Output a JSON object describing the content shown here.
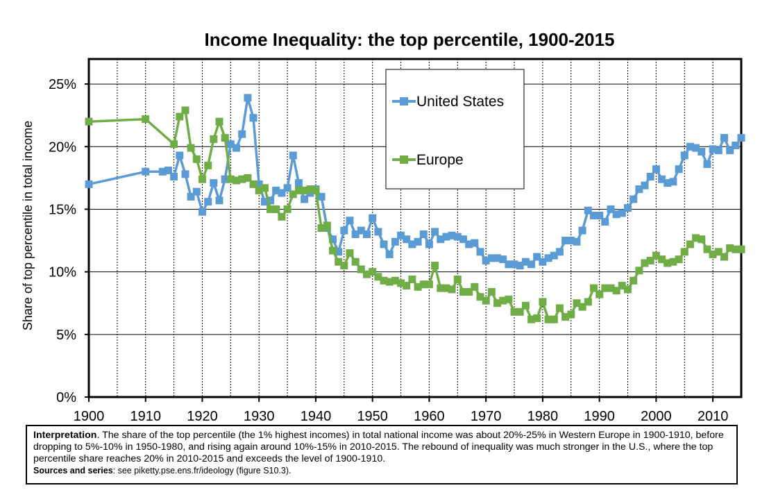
{
  "chart_data": {
    "type": "line",
    "title": "Income Inequality: the top percentile, 1900-2015",
    "xlabel": "",
    "ylabel": "Share of top percentile in total income",
    "xlim": [
      1900,
      2015
    ],
    "ylim": [
      0,
      0.27
    ],
    "x_ticks": [
      1900,
      1910,
      1920,
      1930,
      1940,
      1950,
      1960,
      1970,
      1980,
      1990,
      2000,
      2010
    ],
    "x_tick_labels": [
      "1900",
      "1910",
      "1920",
      "1930",
      "1940",
      "1950",
      "1960",
      "1970",
      "1980",
      "1990",
      "2000",
      "2010"
    ],
    "y_ticks": [
      0,
      0.05,
      0.1,
      0.15,
      0.2,
      0.25
    ],
    "y_tick_labels": [
      "0%",
      "5%",
      "10%",
      "15%",
      "20%",
      "25%"
    ],
    "grid": true,
    "legend_position": "top-center",
    "series": [
      {
        "name": "United States",
        "color": "#5b9bd5",
        "marker": "square",
        "x": [
          1900,
          1910,
          1913,
          1914,
          1915,
          1916,
          1917,
          1918,
          1919,
          1920,
          1921,
          1922,
          1923,
          1924,
          1925,
          1926,
          1927,
          1928,
          1929,
          1930,
          1931,
          1932,
          1933,
          1934,
          1935,
          1936,
          1937,
          1938,
          1939,
          1940,
          1941,
          1942,
          1943,
          1944,
          1945,
          1946,
          1947,
          1948,
          1949,
          1950,
          1951,
          1952,
          1953,
          1954,
          1955,
          1956,
          1957,
          1958,
          1959,
          1960,
          1961,
          1962,
          1963,
          1964,
          1965,
          1966,
          1967,
          1968,
          1969,
          1970,
          1971,
          1972,
          1973,
          1974,
          1975,
          1976,
          1977,
          1978,
          1979,
          1980,
          1981,
          1982,
          1983,
          1984,
          1985,
          1986,
          1987,
          1988,
          1989,
          1990,
          1991,
          1992,
          1993,
          1994,
          1995,
          1996,
          1997,
          1998,
          1999,
          2000,
          2001,
          2002,
          2003,
          2004,
          2005,
          2006,
          2007,
          2008,
          2009,
          2010,
          2011,
          2012,
          2013,
          2014,
          2015
        ],
        "values": [
          0.17,
          0.18,
          0.18,
          0.181,
          0.176,
          0.193,
          0.178,
          0.16,
          0.164,
          0.148,
          0.156,
          0.171,
          0.157,
          0.174,
          0.202,
          0.199,
          0.21,
          0.239,
          0.223,
          0.17,
          0.156,
          0.157,
          0.165,
          0.163,
          0.167,
          0.193,
          0.171,
          0.158,
          0.163,
          0.166,
          0.16,
          0.135,
          0.126,
          0.116,
          0.133,
          0.141,
          0.13,
          0.133,
          0.13,
          0.143,
          0.132,
          0.122,
          0.114,
          0.124,
          0.129,
          0.126,
          0.122,
          0.124,
          0.13,
          0.122,
          0.132,
          0.126,
          0.128,
          0.129,
          0.128,
          0.126,
          0.122,
          0.123,
          0.116,
          0.109,
          0.111,
          0.111,
          0.11,
          0.106,
          0.106,
          0.105,
          0.108,
          0.106,
          0.112,
          0.108,
          0.111,
          0.113,
          0.116,
          0.125,
          0.125,
          0.124,
          0.133,
          0.149,
          0.145,
          0.145,
          0.14,
          0.15,
          0.146,
          0.147,
          0.151,
          0.158,
          0.166,
          0.169,
          0.176,
          0.182,
          0.174,
          0.171,
          0.172,
          0.182,
          0.193,
          0.2,
          0.199,
          0.196,
          0.186,
          0.198,
          0.197,
          0.207,
          0.197,
          0.201,
          0.207
        ]
      },
      {
        "name": "Europe",
        "color": "#70ad47",
        "marker": "square",
        "x": [
          1900,
          1910,
          1915,
          1916,
          1917,
          1918,
          1919,
          1920,
          1921,
          1922,
          1923,
          1924,
          1925,
          1926,
          1927,
          1928,
          1929,
          1930,
          1931,
          1932,
          1933,
          1934,
          1935,
          1936,
          1937,
          1938,
          1939,
          1940,
          1941,
          1942,
          1943,
          1944,
          1945,
          1946,
          1947,
          1948,
          1949,
          1950,
          1951,
          1952,
          1953,
          1954,
          1955,
          1956,
          1957,
          1958,
          1959,
          1960,
          1961,
          1962,
          1963,
          1964,
          1965,
          1966,
          1967,
          1968,
          1969,
          1970,
          1971,
          1972,
          1973,
          1974,
          1975,
          1976,
          1977,
          1978,
          1979,
          1980,
          1981,
          1982,
          1983,
          1984,
          1985,
          1986,
          1987,
          1988,
          1989,
          1990,
          1991,
          1992,
          1993,
          1994,
          1995,
          1996,
          1997,
          1998,
          1999,
          2000,
          2001,
          2002,
          2003,
          2004,
          2005,
          2006,
          2007,
          2008,
          2009,
          2010,
          2011,
          2012,
          2013,
          2014,
          2015
        ],
        "values": [
          0.22,
          0.222,
          0.202,
          0.224,
          0.229,
          0.199,
          0.19,
          0.174,
          0.185,
          0.206,
          0.22,
          0.207,
          0.174,
          0.173,
          0.174,
          0.175,
          0.17,
          0.165,
          0.167,
          0.15,
          0.15,
          0.144,
          0.15,
          0.162,
          0.165,
          0.165,
          0.166,
          0.165,
          0.135,
          0.137,
          0.117,
          0.108,
          0.105,
          0.115,
          0.108,
          0.102,
          0.098,
          0.1,
          0.096,
          0.093,
          0.092,
          0.093,
          0.091,
          0.089,
          0.094,
          0.088,
          0.09,
          0.09,
          0.105,
          0.087,
          0.087,
          0.086,
          0.094,
          0.084,
          0.084,
          0.088,
          0.08,
          0.077,
          0.084,
          0.075,
          0.077,
          0.078,
          0.068,
          0.068,
          0.073,
          0.062,
          0.063,
          0.076,
          0.062,
          0.062,
          0.071,
          0.064,
          0.066,
          0.075,
          0.072,
          0.076,
          0.087,
          0.082,
          0.087,
          0.087,
          0.085,
          0.089,
          0.086,
          0.093,
          0.101,
          0.107,
          0.109,
          0.113,
          0.11,
          0.107,
          0.108,
          0.11,
          0.116,
          0.122,
          0.127,
          0.126,
          0.118,
          0.114,
          0.116,
          0.112,
          0.119,
          0.118,
          0.118
        ]
      }
    ]
  },
  "caption": {
    "interpretation_label": "Interpretation",
    "interpretation_text": ". The share of the top percentile (the 1% highest incomes) in total national income was about 20%-25% in Western Europe in 1900-1910, before dropping to 5%-10% in 1950-1980, and rising again around 10%-15% in 2010-2015. The rebound of inequality was much stronger in the U.S., where the top percentile share reaches 20% in 2010-2015 and exceeds the level of 1900-1910.",
    "sources_label": "Sources and series",
    "sources_text": ": see piketty.pse.ens.fr/ideology (figure S10.3)."
  }
}
